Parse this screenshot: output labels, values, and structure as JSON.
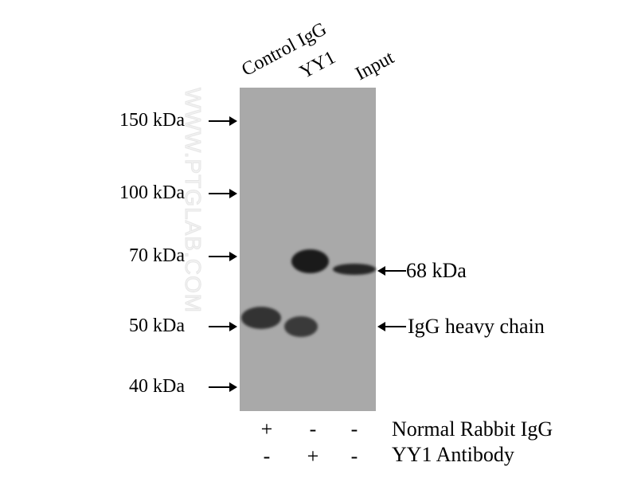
{
  "lanes": [
    "Control IgG",
    "YY1",
    "Input"
  ],
  "markers": [
    "150 kDa",
    "100 kDa",
    "70 kDa",
    "50 kDa",
    "40 kDa"
  ],
  "band_labels": {
    "target": "68 kDa",
    "igg": "IgG heavy chain"
  },
  "watermark": "WWW.PTGLAB.COM",
  "conditions": [
    {
      "label": "Normal Rabbit IgG",
      "signs": [
        "+",
        "-",
        "-"
      ]
    },
    {
      "label": "YY1 Antibody",
      "signs": [
        "-",
        "+",
        "-"
      ]
    }
  ],
  "colors": {
    "membrane": "#a9a9a9",
    "band": "#1e1e1e"
  }
}
